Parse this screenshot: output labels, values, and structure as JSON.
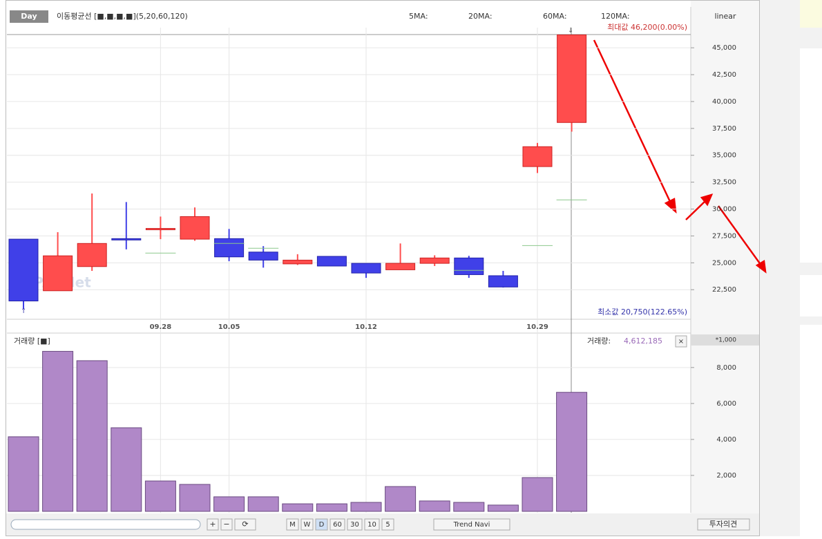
{
  "chart_data": [
    {
      "type": "candlestick",
      "period": "Day",
      "ma_legend": "이동평균선 [■,■,■,■](5,20,60,120)",
      "ma_labels": [
        "5MA:",
        "20MA:",
        "60MA:",
        "120MA:"
      ],
      "scale": "linear",
      "max_label": "최대값 46,200(0.00%)",
      "min_label": "최소값 20,750(122.65%)",
      "watermark": "ⓒPAXNet",
      "categories": [
        null,
        null,
        null,
        null,
        "09.28",
        null,
        "10.05",
        null,
        null,
        null,
        "10.12",
        null,
        null,
        null,
        null,
        "10.29",
        null
      ],
      "open": [
        27200,
        22400,
        24650,
        27250,
        28150,
        27200,
        27250,
        26000,
        24900,
        25600,
        24950,
        24350,
        24950,
        25450,
        23800,
        33950,
        38050
      ],
      "high": [
        27200,
        27850,
        31450,
        30650,
        29300,
        30150,
        28150,
        26550,
        25800,
        25600,
        24950,
        26800,
        25700,
        25650,
        24250,
        36150,
        46200
      ],
      "low": [
        20750,
        22400,
        24250,
        26250,
        27200,
        27050,
        25150,
        24550,
        24800,
        24700,
        23600,
        24350,
        24700,
        23600,
        22700,
        33350,
        37200
      ],
      "close": [
        21450,
        25650,
        26800,
        27200,
        28200,
        29300,
        25550,
        25250,
        25250,
        24700,
        24050,
        24950,
        25450,
        23900,
        22750,
        35800,
        46200
      ],
      "ma_values": [
        null,
        null,
        null,
        null,
        25900,
        null,
        26800,
        26350,
        null,
        null,
        null,
        null,
        null,
        24300,
        null,
        26600,
        30850
      ],
      "up_color": "#ff4d4d",
      "down_color": "#4040e8",
      "ylim": [
        19750,
        48800
      ],
      "yticks": [
        {
          "value": 22500,
          "label": "22,500"
        },
        {
          "value": 25000,
          "label": "25,000"
        },
        {
          "value": 27500,
          "label": "27,500"
        },
        {
          "value": 30000,
          "label": "30,000"
        },
        {
          "value": 32500,
          "label": "32,500"
        },
        {
          "value": 35000,
          "label": "35,000"
        },
        {
          "value": 37500,
          "label": "37,500"
        },
        {
          "value": 40000,
          "label": "40,000"
        },
        {
          "value": 42500,
          "label": "42,500"
        },
        {
          "value": 45000,
          "label": "45,000"
        }
      ],
      "grid": true
    },
    {
      "type": "bar",
      "title": "거래량 [■]",
      "readout_label": "거래량:",
      "readout_value": "4,612,185",
      "unit": "*1,000",
      "values": [
        4150,
        8900,
        8380,
        4650,
        1690,
        1500,
        810,
        810,
        420,
        420,
        500,
        1380,
        580,
        500,
        350,
        1880,
        6620
      ],
      "color": "#b088c8",
      "ylim": [
        0,
        9300
      ],
      "yticks": [
        {
          "value": 2000,
          "label": "2,000"
        },
        {
          "value": 4000,
          "label": "4,000"
        },
        {
          "value": 6000,
          "label": "6,000"
        },
        {
          "value": 8000,
          "label": "8,000"
        }
      ],
      "grid": true
    }
  ],
  "toolbar": {
    "periods": [
      "M",
      "W",
      "D",
      "60",
      "30",
      "10",
      "5"
    ],
    "trend": "Trend Navi",
    "opinion": "투자의견"
  }
}
